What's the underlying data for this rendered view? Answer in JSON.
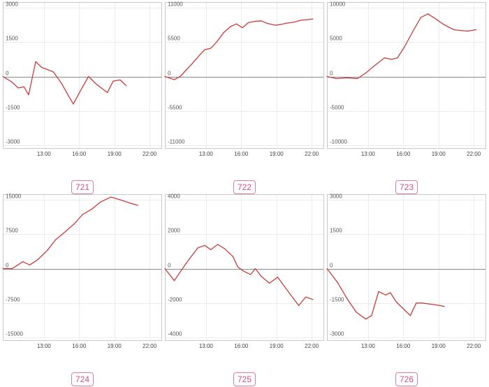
{
  "chart_data": [
    {
      "type": "line",
      "label": "721",
      "ylim": [
        -3000,
        3000
      ],
      "yticks": [
        3000,
        1500,
        0,
        -1500,
        -3000
      ],
      "ytick_labels": [
        "3000",
        "1500",
        "0",
        "-1500",
        "-3000"
      ],
      "xlim": [
        9.5,
        23.0
      ],
      "xticks": [
        13,
        16,
        19,
        22
      ],
      "xtick_labels": [
        "13:00",
        "16:00",
        "19:00",
        "22:00"
      ],
      "grid": true,
      "color": "#cc3b3b",
      "x": [
        9.5,
        10.3,
        10.8,
        11.3,
        11.7,
        12.3,
        12.8,
        13.8,
        14.5,
        15.1,
        15.5,
        16.3,
        16.8,
        17.5,
        18.4,
        18.9,
        19.5,
        20.0
      ],
      "y": [
        0,
        -250,
        -500,
        -450,
        -800,
        650,
        400,
        200,
        -300,
        -850,
        -1200,
        -450,
        0,
        -350,
        -700,
        -200,
        -150,
        -400
      ]
    },
    {
      "type": "line",
      "label": "722",
      "ylim": [
        -11000,
        11000
      ],
      "yticks": [
        11000,
        5500,
        0,
        -5500,
        -11000
      ],
      "ytick_labels": [
        "11000",
        "5500",
        "0",
        "-5500",
        "-11000"
      ],
      "xlim": [
        9.5,
        23.0
      ],
      "xticks": [
        13,
        16,
        19,
        22
      ],
      "xtick_labels": [
        "13:00",
        "16:00",
        "19:00",
        "22:00"
      ],
      "grid": true,
      "color": "#cc3b3b",
      "x": [
        9.5,
        10.3,
        10.8,
        11.3,
        11.8,
        12.4,
        12.9,
        13.4,
        13.9,
        14.5,
        15.1,
        15.6,
        16.1,
        16.6,
        17.1,
        17.7,
        18.2,
        18.9,
        19.3,
        19.8,
        20.5,
        21.1,
        21.8,
        22.1
      ],
      "y": [
        0,
        -500,
        0,
        1000,
        2000,
        3300,
        4300,
        4500,
        5500,
        7000,
        8000,
        8400,
        7800,
        8600,
        8800,
        8900,
        8500,
        8200,
        8300,
        8500,
        8700,
        9000,
        9100,
        9200
      ]
    },
    {
      "type": "line",
      "label": "723",
      "ylim": [
        -10000,
        10000
      ],
      "yticks": [
        10000,
        5000,
        0,
        -5000,
        -10000
      ],
      "ytick_labels": [
        "10000",
        "5000",
        "0",
        "-5000",
        "-10000"
      ],
      "xlim": [
        9.5,
        23.0
      ],
      "xticks": [
        13,
        16,
        19,
        22
      ],
      "xtick_labels": [
        "13:00",
        "16:00",
        "19:00",
        "22:00"
      ],
      "grid": true,
      "color": "#cc3b3b",
      "x": [
        9.5,
        10.3,
        11.2,
        12.1,
        12.8,
        13.5,
        14.4,
        15.0,
        15.5,
        16.1,
        16.8,
        17.5,
        18.1,
        18.9,
        19.4,
        20.3,
        20.8,
        21.5,
        22.2
      ],
      "y": [
        0,
        -300,
        -200,
        -300,
        500,
        1500,
        2700,
        2500,
        2700,
        4300,
        6500,
        8600,
        9100,
        8200,
        7600,
        6800,
        6700,
        6600,
        6800
      ]
    },
    {
      "type": "line",
      "label": "724",
      "ylim": [
        -15000,
        15000
      ],
      "yticks": [
        15000,
        7500,
        0,
        -7500,
        -15000
      ],
      "ytick_labels": [
        "15000",
        "7500",
        "0",
        "-7500",
        "-15000"
      ],
      "xlim": [
        9.5,
        23.0
      ],
      "xticks": [
        13,
        16,
        19,
        22
      ],
      "xtick_labels": [
        "13:00",
        "16:00",
        "19:00",
        "22:00"
      ],
      "grid": true,
      "color": "#cc3b3b",
      "x": [
        9.5,
        10.3,
        11.2,
        11.8,
        12.5,
        13.3,
        14.0,
        14.8,
        15.6,
        16.3,
        17.1,
        17.8,
        18.7,
        19.5,
        20.3,
        21.0
      ],
      "y": [
        0,
        0,
        1500,
        800,
        2000,
        4000,
        6300,
        8000,
        9800,
        11800,
        13000,
        14500,
        15600,
        15000,
        14300,
        13800
      ]
    },
    {
      "type": "line",
      "label": "725",
      "ylim": [
        -4000,
        4000
      ],
      "yticks": [
        4000,
        2000,
        0,
        -2000,
        -4000
      ],
      "ytick_labels": [
        "4000",
        "2000",
        "0",
        "-2000",
        "-4000"
      ],
      "xlim": [
        9.5,
        23.0
      ],
      "xticks": [
        13,
        16,
        19,
        22
      ],
      "xtick_labels": [
        "13:00",
        "16:00",
        "19:00",
        "22:00"
      ],
      "grid": true,
      "color": "#cc3b3b",
      "x": [
        9.5,
        10.3,
        11.3,
        12.3,
        12.9,
        13.4,
        14.0,
        14.6,
        15.3,
        15.7,
        16.2,
        16.8,
        17.2,
        17.7,
        18.4,
        19.1,
        19.8,
        20.4,
        20.9,
        21.5,
        22.1
      ],
      "y": [
        0,
        -700,
        300,
        1200,
        1350,
        1100,
        1400,
        1150,
        700,
        100,
        -150,
        -350,
        0,
        -450,
        -850,
        -500,
        -1150,
        -1700,
        -2150,
        -1650,
        -1800
      ]
    },
    {
      "type": "line",
      "label": "726",
      "ylim": [
        -3000,
        3000
      ],
      "yticks": [
        3000,
        1500,
        0,
        -1500,
        -3000
      ],
      "ytick_labels": [
        "3000",
        "1500",
        "0",
        "-1500",
        "-3000"
      ],
      "xlim": [
        9.5,
        23.0
      ],
      "xticks": [
        13,
        16,
        19,
        22
      ],
      "xtick_labels": [
        "13:00",
        "16:00",
        "19:00",
        "22:00"
      ],
      "grid": true,
      "color": "#cc3b3b",
      "x": [
        9.5,
        10.4,
        11.2,
        12.0,
        12.8,
        13.3,
        13.9,
        14.5,
        14.9,
        15.4,
        16.1,
        16.6,
        17.1,
        17.6,
        18.3,
        19.0,
        19.5
      ],
      "y": [
        0,
        -600,
        -1300,
        -1900,
        -2200,
        -2050,
        -1000,
        -1150,
        -1050,
        -1450,
        -1800,
        -2050,
        -1500,
        -1500,
        -1550,
        -1600,
        -1650
      ]
    }
  ]
}
